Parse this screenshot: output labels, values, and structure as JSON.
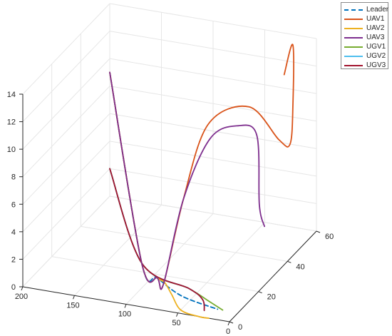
{
  "chart_data": {
    "type": "line",
    "projection": "3d",
    "title": "",
    "xlabel": "",
    "ylabel": "",
    "zlabel": "",
    "xlim": [
      0,
      200
    ],
    "ylim": [
      0,
      60
    ],
    "zlim": [
      0,
      14
    ],
    "x_ticks": [
      "200",
      "150",
      "100",
      "50",
      "0"
    ],
    "y_ticks": [
      "0",
      "20",
      "40",
      "60"
    ],
    "z_ticks": [
      "0",
      "2",
      "4",
      "6",
      "8",
      "10",
      "12",
      "14"
    ],
    "grid": true,
    "legend_position": "top-right",
    "series": [
      {
        "name": "Leader",
        "color": "#0072BD",
        "dash": true,
        "points": [
          [
            200,
            60,
            9
          ],
          [
            120,
            25,
            0
          ],
          [
            95,
            18,
            0
          ],
          [
            60,
            10,
            0
          ],
          [
            20,
            6,
            0
          ]
        ]
      },
      {
        "name": "UAV1",
        "color": "#D95319",
        "dash": false,
        "points": [
          [
            200,
            60,
            9
          ],
          [
            120,
            25,
            0
          ],
          [
            95,
            18,
            0
          ],
          [
            85,
            15,
            0
          ],
          [
            70,
            18,
            6
          ],
          [
            60,
            28,
            10.5
          ],
          [
            40,
            42,
            10.5
          ],
          [
            25,
            52,
            7.2
          ],
          [
            20,
            56,
            6.5
          ],
          [
            20,
            58,
            9
          ],
          [
            20,
            58,
            13.5
          ],
          [
            20,
            52,
            12
          ]
        ]
      },
      {
        "name": "UAV2",
        "color": "#EDB120",
        "dash": false,
        "points": [
          [
            200,
            60,
            9
          ],
          [
            120,
            25,
            0
          ],
          [
            95,
            18,
            0
          ],
          [
            85,
            16,
            0
          ],
          [
            70,
            10,
            0
          ],
          [
            50,
            2,
            0
          ],
          [
            30,
            0,
            0
          ],
          [
            20,
            0,
            0
          ]
        ]
      },
      {
        "name": "UAV3",
        "color": "#7E2F8E",
        "dash": false,
        "points": [
          [
            200,
            60,
            9
          ],
          [
            120,
            25,
            0
          ],
          [
            95,
            18,
            0
          ],
          [
            85,
            15,
            0
          ],
          [
            70,
            18,
            6
          ],
          [
            58,
            28,
            9.5
          ],
          [
            45,
            38,
            9.5
          ],
          [
            38,
            46,
            8
          ],
          [
            30,
            42,
            3.5
          ],
          [
            25,
            42,
            2
          ]
        ]
      },
      {
        "name": "UGV1",
        "color": "#77AC30",
        "dash": false,
        "points": [
          [
            200,
            60,
            2
          ],
          [
            120,
            25,
            0
          ],
          [
            60,
            15,
            0
          ],
          [
            35,
            10,
            0
          ],
          [
            15,
            6,
            0
          ]
        ]
      },
      {
        "name": "UGV2",
        "color": "#4DBEEE",
        "dash": false,
        "points": [
          [
            200,
            60,
            2
          ],
          [
            120,
            25,
            0
          ],
          [
            60,
            15,
            0
          ],
          [
            40,
            10,
            0
          ],
          [
            30,
            4,
            0
          ]
        ]
      },
      {
        "name": "UGV3",
        "color": "#A2142F",
        "dash": false,
        "points": [
          [
            200,
            60,
            2
          ],
          [
            120,
            25,
            0
          ],
          [
            60,
            15,
            0
          ],
          [
            40,
            10,
            0
          ],
          [
            30,
            4,
            0
          ]
        ]
      }
    ]
  }
}
